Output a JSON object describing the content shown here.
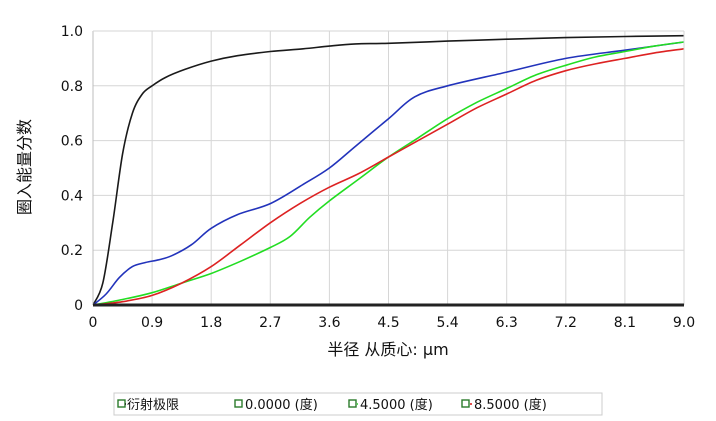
{
  "chart_data": {
    "type": "line",
    "xlabel": "半径 从质心: µm",
    "ylabel": "圈入能量分数",
    "xlim": [
      0,
      9.0
    ],
    "ylim": [
      0,
      1.0
    ],
    "x_ticks": [
      "0",
      "0.9",
      "1.8",
      "2.7",
      "3.6",
      "4.5",
      "5.4",
      "6.3",
      "7.2",
      "8.1",
      "9.0"
    ],
    "y_ticks": [
      "0",
      "0.2",
      "0.4",
      "0.6",
      "0.8",
      "1.0"
    ],
    "grid": true,
    "legend_position": "bottom",
    "series": [
      {
        "name": "衍射极限",
        "color": "#1a1a1a",
        "x": [
          0,
          0.15,
          0.3,
          0.45,
          0.6,
          0.75,
          0.9,
          1.1,
          1.4,
          1.8,
          2.2,
          2.7,
          3.2,
          3.6,
          4.0,
          4.5,
          5.4,
          6.3,
          7.2,
          8.1,
          9.0
        ],
        "y": [
          0,
          0.08,
          0.3,
          0.55,
          0.7,
          0.77,
          0.8,
          0.83,
          0.86,
          0.89,
          0.91,
          0.925,
          0.935,
          0.945,
          0.953,
          0.955,
          0.963,
          0.97,
          0.976,
          0.98,
          0.983
        ]
      },
      {
        "name": "0.0000 (度)",
        "color": "#2233bb",
        "x": [
          0,
          0.2,
          0.4,
          0.6,
          0.8,
          1.0,
          1.2,
          1.5,
          1.8,
          2.2,
          2.7,
          3.2,
          3.6,
          4.0,
          4.5,
          4.9,
          5.4,
          6.3,
          7.2,
          8.1,
          9.0
        ],
        "y": [
          0,
          0.04,
          0.1,
          0.14,
          0.155,
          0.165,
          0.18,
          0.22,
          0.28,
          0.33,
          0.37,
          0.44,
          0.5,
          0.58,
          0.68,
          0.76,
          0.8,
          0.85,
          0.9,
          0.93,
          0.96
        ]
      },
      {
        "name": "4.5000 (度)",
        "color": "#22dd22",
        "x": [
          0,
          0.45,
          0.9,
          1.35,
          1.8,
          2.25,
          2.7,
          3.0,
          3.3,
          3.6,
          4.05,
          4.5,
          4.95,
          5.4,
          5.85,
          6.3,
          6.75,
          7.2,
          7.65,
          8.1,
          8.55,
          9.0
        ],
        "y": [
          0,
          0.02,
          0.045,
          0.08,
          0.115,
          0.16,
          0.21,
          0.25,
          0.32,
          0.38,
          0.46,
          0.54,
          0.61,
          0.68,
          0.74,
          0.79,
          0.84,
          0.875,
          0.905,
          0.925,
          0.945,
          0.96
        ]
      },
      {
        "name": "8.5000 (度)",
        "color": "#dd2222",
        "x": [
          0,
          0.45,
          0.9,
          1.35,
          1.8,
          2.25,
          2.7,
          3.15,
          3.6,
          4.05,
          4.5,
          4.95,
          5.4,
          5.85,
          6.3,
          6.75,
          7.2,
          7.65,
          8.1,
          8.55,
          9.0
        ],
        "y": [
          0,
          0.012,
          0.035,
          0.08,
          0.14,
          0.22,
          0.3,
          0.37,
          0.43,
          0.48,
          0.54,
          0.6,
          0.66,
          0.72,
          0.77,
          0.82,
          0.855,
          0.88,
          0.9,
          0.92,
          0.935
        ]
      }
    ]
  },
  "legend": {
    "items": [
      "衍射极限",
      "0.0000 (度)",
      "4.5000 (度)",
      "8.5000 (度)"
    ]
  }
}
